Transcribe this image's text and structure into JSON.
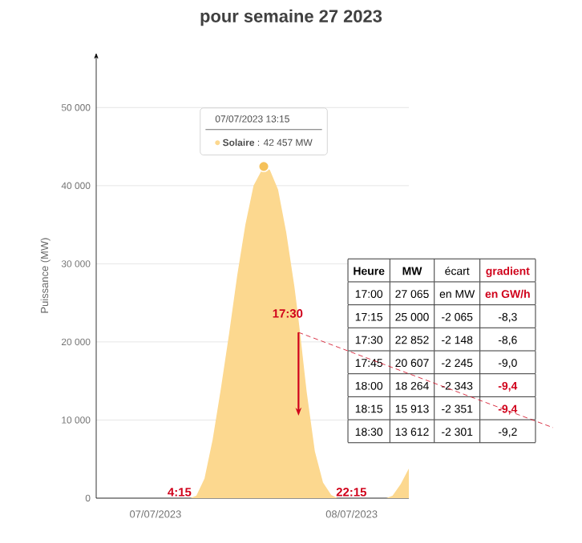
{
  "chart_data": {
    "type": "area",
    "title": "pour semaine 27 2023",
    "ylabel": "Puissance (MW)",
    "xlim": [
      "2023-07-06T16:45",
      "2023-07-08T07:00"
    ],
    "ylim": [
      0,
      57000
    ],
    "xticks": [
      {
        "value": "2023-07-07",
        "label": "07/07/2023"
      },
      {
        "value": "2023-07-08",
        "label": "08/07/2023"
      }
    ],
    "yticks": [
      {
        "value": 0,
        "label": "0"
      },
      {
        "value": 10000,
        "label": "10 000"
      },
      {
        "value": 20000,
        "label": "20 000"
      },
      {
        "value": 30000,
        "label": "30 000"
      },
      {
        "value": 40000,
        "label": "40 000"
      },
      {
        "value": 50000,
        "label": "50 000"
      }
    ],
    "grid": "y",
    "series": [
      {
        "color": "#fcd88f",
        "x": [
          "2023-07-06T16:45",
          "2023-07-07T04:15",
          "2023-07-07T05:00",
          "2023-07-07T06:00",
          "2023-07-07T07:00",
          "2023-07-07T08:00",
          "2023-07-07T09:00",
          "2023-07-07T10:00",
          "2023-07-07T11:00",
          "2023-07-07T12:00",
          "2023-07-07T13:15",
          "2023-07-07T14:00",
          "2023-07-07T15:00",
          "2023-07-07T16:00",
          "2023-07-07T17:00",
          "2023-07-07T17:15",
          "2023-07-07T17:30",
          "2023-07-07T17:45",
          "2023-07-07T18:00",
          "2023-07-07T18:15",
          "2023-07-07T18:30",
          "2023-07-07T19:30",
          "2023-07-07T20:30",
          "2023-07-07T21:30",
          "2023-07-07T22:15",
          "2023-07-08T04:15",
          "2023-07-08T05:00",
          "2023-07-08T06:00",
          "2023-07-08T07:00"
        ],
        "values": [
          0,
          0,
          300,
          2500,
          7500,
          14000,
          21000,
          28500,
          35000,
          40000,
          42457,
          42000,
          39500,
          34000,
          27065,
          25000,
          22852,
          20607,
          18264,
          15913,
          13612,
          6000,
          2000,
          400,
          0,
          0,
          300,
          1800,
          3800
        ]
      },
      {
        "type": "scatter",
        "color": "#f5c15a",
        "x": [
          "2023-07-07T13:15"
        ],
        "values": [
          42457
        ]
      }
    ],
    "annotations": [
      "07/07/2023 13:15",
      "**Solaire** : 42 457 MW",
      {
        "text": "4:15",
        "x": "2023-07-07T04:15",
        "y": 0
      },
      {
        "text": "17:30",
        "x": "2023-07-07T17:30",
        "y": 22852
      },
      {
        "text": "22:15",
        "x": "2023-07-07T22:15",
        "y": 0
      },
      "Heure",
      "MW",
      "écart",
      "gradient",
      "17:00",
      "27 065",
      "en MW",
      "en GW/h",
      "17:15",
      "25 000",
      "-2 065",
      "-8,3",
      "17:30",
      "22 852",
      "-2 148",
      "-8,6",
      "17:45",
      "20 607",
      "-2 245",
      "-9,0",
      "18:00",
      "18 264",
      "-2 343",
      "-9,4",
      "18:15",
      "15 913",
      "-2 351",
      "-9,4",
      "18:30",
      "13 612",
      "-2 301",
      "-9,2"
    ]
  }
}
